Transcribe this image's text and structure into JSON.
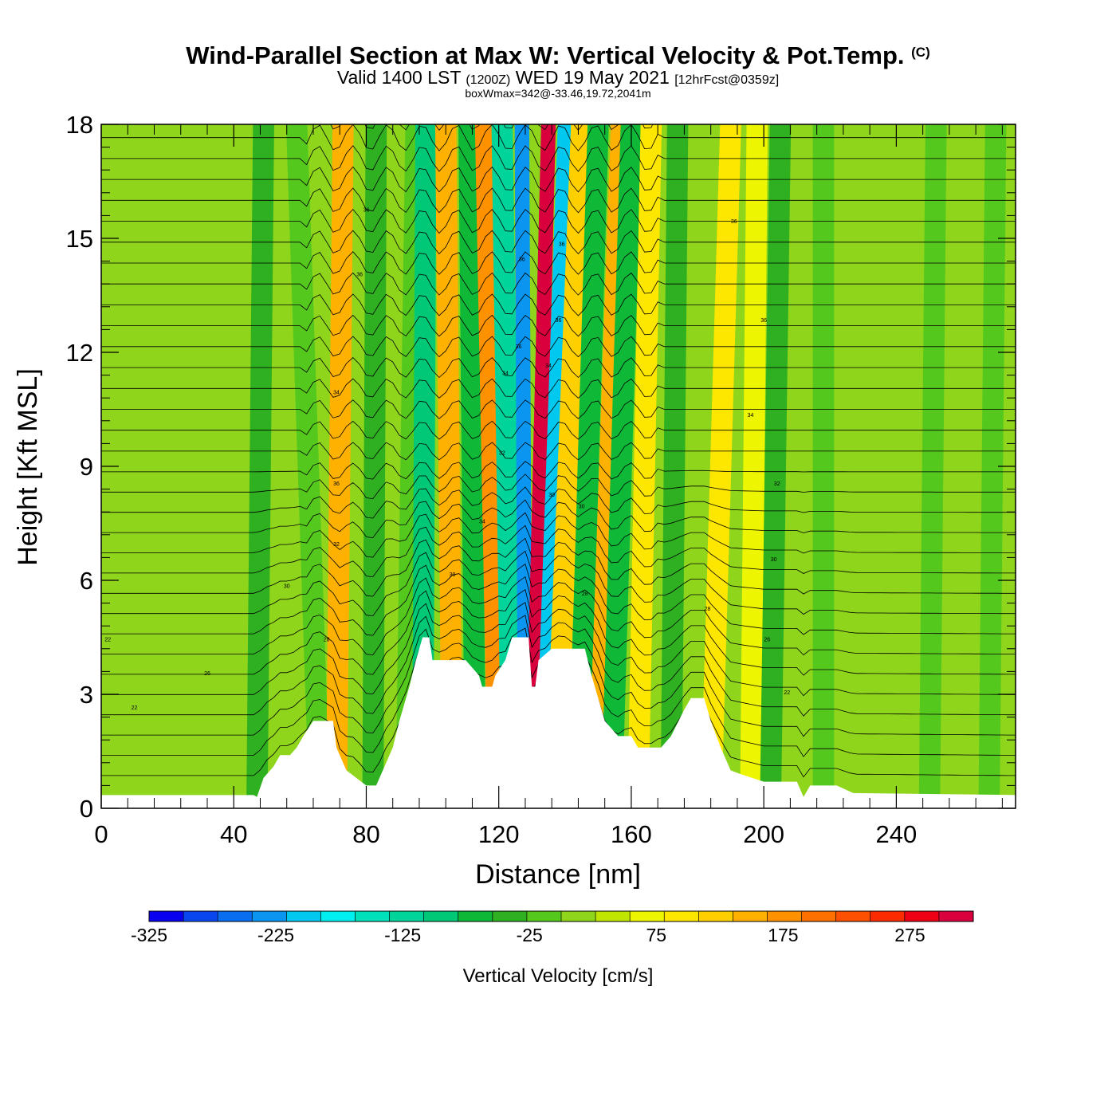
{
  "title": "Wind-Parallel Section at Max W: Vertical Velocity & Pot.Temp.",
  "copyright": "(C)",
  "subtitle": {
    "valid": "Valid 1400 LST",
    "zulu": "(1200Z)",
    "date": "WED 19 May 2021",
    "fcst": "[12hrFcst@0359z]"
  },
  "info": "boxWmax=342@-33.46,19.72,2041m",
  "chart_data": {
    "type": "heatmap",
    "xlabel": "Distance [nm]",
    "ylabel": "Height [Kft MSL]",
    "xlim": [
      0,
      276
    ],
    "ylim": [
      0,
      18
    ],
    "x_ticks": [
      "0",
      "40",
      "80",
      "120",
      "160",
      "200",
      "240"
    ],
    "y_ticks": [
      "0",
      "3",
      "6",
      "9",
      "12",
      "15",
      "18"
    ],
    "colorbar": {
      "title": "Vertical Velocity [cm/s]",
      "range": [
        -325,
        325
      ],
      "step": 25,
      "tick_labels": [
        "-325",
        "-225",
        "-125",
        "-25",
        "75",
        "175",
        "275"
      ],
      "colors": [
        "#0a00f0",
        "#0a46f0",
        "#0a6ef0",
        "#0a96f0",
        "#00c8ee",
        "#00f0f0",
        "#00e0bb",
        "#00d49a",
        "#00c877",
        "#10b838",
        "#2eb020",
        "#55c81e",
        "#8ed51c",
        "#c0e600",
        "#eef500",
        "#fde600",
        "#ffd000",
        "#feb100",
        "#fe9100",
        "#fe7100",
        "#fd5000",
        "#fd2b00",
        "#ee0015",
        "#d8003d"
      ]
    },
    "background_velocity": -25,
    "bands": [
      {
        "x_bottom": 47,
        "x_top": 49,
        "value": -60
      },
      {
        "x_bottom": 66,
        "x_top": 59,
        "value": -50
      },
      {
        "x_bottom": 71,
        "x_top": 73,
        "value": 110
      },
      {
        "x_bottom": 82,
        "x_top": 83,
        "value": -60
      },
      {
        "x_bottom": 92,
        "x_top": 95,
        "value": -40
      },
      {
        "x_bottom": 97,
        "x_top": 98,
        "value": -110
      },
      {
        "x_bottom": 106,
        "x_top": 104,
        "value": 110
      },
      {
        "x_bottom": 113,
        "x_top": 111,
        "value": -80
      },
      {
        "x_bottom": 120,
        "x_top": 116,
        "value": 130
      },
      {
        "x_bottom": 124,
        "x_top": 121,
        "value": -150
      },
      {
        "x_bottom": 128,
        "x_top": 127,
        "value": -230
      },
      {
        "x_bottom": 130,
        "x_top": 135,
        "value": 290
      },
      {
        "x_bottom": 133,
        "x_top": 140,
        "value": -210
      },
      {
        "x_bottom": 137,
        "x_top": 145,
        "value": 90
      },
      {
        "x_bottom": 144,
        "x_top": 150,
        "value": -90
      },
      {
        "x_bottom": 150,
        "x_top": 157,
        "value": 110
      },
      {
        "x_bottom": 154,
        "x_top": 160,
        "value": -80
      },
      {
        "x_bottom": 162,
        "x_top": 166,
        "value": 50
      },
      {
        "x_bottom": 172,
        "x_top": 174,
        "value": -60
      },
      {
        "x_bottom": 184,
        "x_top": 190,
        "value": 60
      },
      {
        "x_bottom": 196,
        "x_top": 198,
        "value": 40
      },
      {
        "x_bottom": 202,
        "x_top": 205,
        "value": -60
      },
      {
        "x_bottom": 218,
        "x_top": 218,
        "value": -50
      },
      {
        "x_bottom": 250,
        "x_top": 252,
        "value": -50
      },
      {
        "x_bottom": 268,
        "x_top": 270,
        "value": -50
      }
    ],
    "terrain": [
      [
        0,
        0.35
      ],
      [
        46,
        0.35
      ],
      [
        47,
        0.3
      ],
      [
        49,
        0.8
      ],
      [
        52,
        1.1
      ],
      [
        54,
        1.4
      ],
      [
        57,
        1.4
      ],
      [
        59,
        1.6
      ],
      [
        61,
        1.9
      ],
      [
        64,
        2.3
      ],
      [
        70,
        2.3
      ],
      [
        71,
        1.6
      ],
      [
        74,
        1.0
      ],
      [
        80,
        0.6
      ],
      [
        83,
        0.6
      ],
      [
        85,
        1.0
      ],
      [
        88,
        1.6
      ],
      [
        90,
        2.3
      ],
      [
        93,
        3.2
      ],
      [
        95,
        3.9
      ],
      [
        97,
        4.5
      ],
      [
        99,
        4.5
      ],
      [
        100,
        3.9
      ],
      [
        110,
        3.9
      ],
      [
        114,
        3.5
      ],
      [
        115,
        3.2
      ],
      [
        118,
        3.2
      ],
      [
        119,
        3.5
      ],
      [
        122,
        3.9
      ],
      [
        124,
        4.5
      ],
      [
        129,
        4.5
      ],
      [
        130,
        3.2
      ],
      [
        131,
        3.2
      ],
      [
        132,
        3.9
      ],
      [
        136,
        4.2
      ],
      [
        146,
        4.2
      ],
      [
        148,
        3.5
      ],
      [
        150,
        2.9
      ],
      [
        152,
        2.3
      ],
      [
        156,
        1.9
      ],
      [
        160,
        1.9
      ],
      [
        162,
        1.6
      ],
      [
        169,
        1.6
      ],
      [
        172,
        1.9
      ],
      [
        176,
        2.6
      ],
      [
        178,
        2.9
      ],
      [
        182,
        2.9
      ],
      [
        184,
        2.3
      ],
      [
        187,
        1.6
      ],
      [
        190,
        1.0
      ],
      [
        193,
        0.9
      ],
      [
        200,
        0.7
      ],
      [
        210,
        0.7
      ],
      [
        212,
        0.3
      ],
      [
        214,
        0.6
      ],
      [
        218,
        0.6
      ],
      [
        222,
        0.6
      ],
      [
        227,
        0.4
      ],
      [
        276,
        0.35
      ]
    ],
    "pot_temp_labels": [
      "22",
      "24",
      "26",
      "28",
      "30",
      "32",
      "34",
      "36"
    ]
  }
}
